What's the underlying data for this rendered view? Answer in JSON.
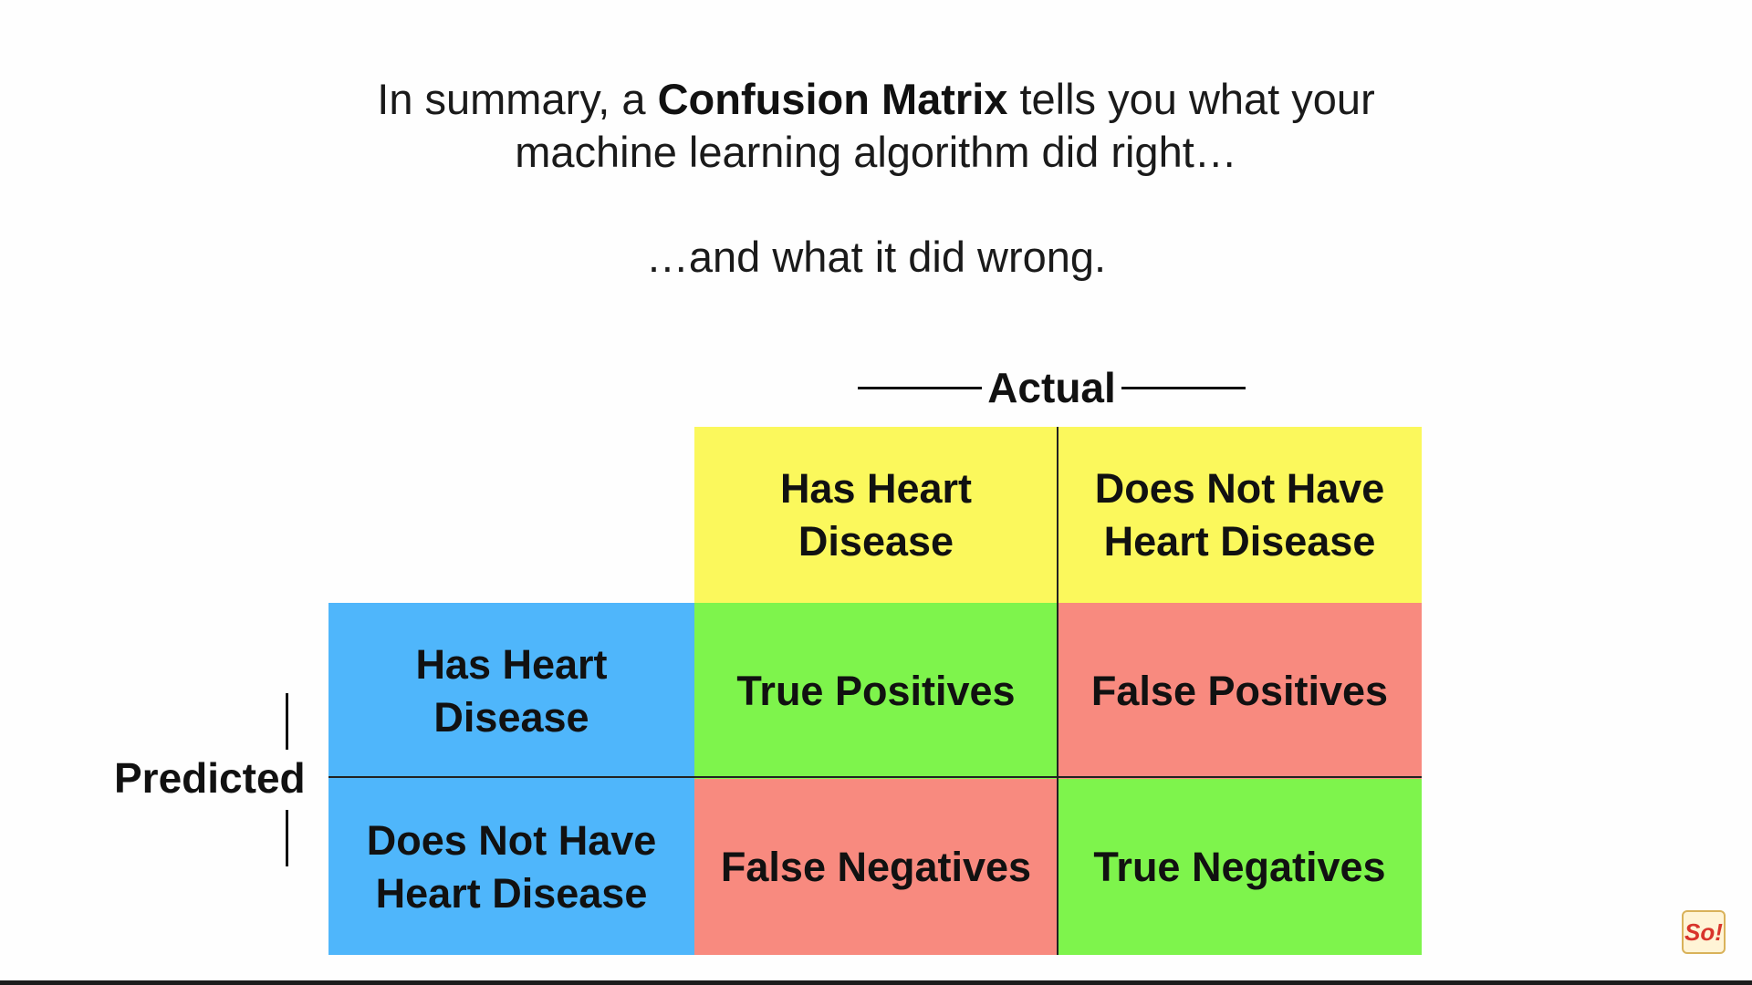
{
  "summary": {
    "pre": "In summary, a ",
    "bold": "Confusion Matrix",
    "post": " tells you what your",
    "line2": "machine learning algorithm did right…",
    "line3": "…and what it did wrong."
  },
  "matrix": {
    "axis_actual": "Actual",
    "axis_predicted": "Predicted",
    "col_headers": [
      "Has Heart Disease",
      "Does Not Have Heart Disease"
    ],
    "row_headers": [
      "Has Heart Disease",
      "Does Not Have Heart Disease"
    ],
    "cells": [
      [
        "True Positives",
        "False Positives"
      ],
      [
        "False Negatives",
        "True Negatives"
      ]
    ]
  },
  "colors": {
    "header_actual": "#fbf85c",
    "header_predicted": "#4fb6fb",
    "correct": "#7ef44c",
    "incorrect": "#f88a7f"
  },
  "logo": {
    "text": "So!"
  }
}
